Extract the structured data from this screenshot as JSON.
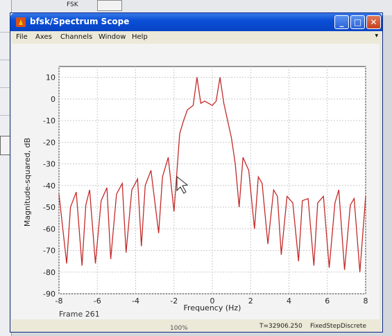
{
  "background": {
    "fsk_label": "FSK",
    "zoom": "100%"
  },
  "window": {
    "title": "bfsk/Spectrum Scope",
    "controls": {
      "minimize": "_",
      "maximize": "□",
      "close": "✕"
    }
  },
  "menu": [
    "File",
    "Axes",
    "Channels",
    "Window",
    "Help"
  ],
  "icons": {
    "app": "matlab-icon",
    "menu_arrow": "menu-arrow-icon"
  },
  "frame_label": "Frame 261",
  "status": {
    "time": "T=32906.250",
    "solver": "FixedStepDiscrete"
  },
  "colors": {
    "trace": "#c42a2a",
    "titlebar": "#0a4fd6",
    "grid": "#c9c9c9"
  },
  "chart_data": {
    "type": "line",
    "title": "",
    "xlabel": "Frequency (Hz)",
    "ylabel": "Magnitude-squared, dB",
    "xlim": [
      -8,
      8
    ],
    "ylim": [
      -90,
      15
    ],
    "xticks": [
      -8,
      -6,
      -4,
      -2,
      0,
      2,
      4,
      6,
      8
    ],
    "yticks": [
      10,
      0,
      -10,
      -20,
      -30,
      -40,
      -50,
      -60,
      -70,
      -80,
      -90
    ],
    "grid": true,
    "series": [
      {
        "color": "#c42a2a",
        "x": [
          -8.0,
          -7.6,
          -7.4,
          -7.1,
          -6.8,
          -6.6,
          -6.4,
          -6.1,
          -5.8,
          -5.5,
          -5.3,
          -5.0,
          -4.7,
          -4.5,
          -4.2,
          -3.9,
          -3.7,
          -3.5,
          -3.2,
          -2.8,
          -2.6,
          -2.3,
          -2.0,
          -1.7,
          -1.5,
          -1.3,
          -1.0,
          -0.8,
          -0.6,
          -0.4,
          -0.2,
          0.0,
          0.2,
          0.4,
          0.6,
          0.8,
          1.0,
          1.2,
          1.4,
          1.6,
          1.9,
          2.2,
          2.4,
          2.6,
          2.9,
          3.2,
          3.4,
          3.6,
          3.9,
          4.2,
          4.5,
          4.7,
          5.0,
          5.3,
          5.5,
          5.8,
          6.1,
          6.4,
          6.6,
          6.9,
          7.2,
          7.4,
          7.7,
          8.0
        ],
        "y": [
          -44,
          -76,
          -50,
          -43,
          -77,
          -49,
          -42,
          -76,
          -47,
          -41,
          -74,
          -44,
          -39,
          -71,
          -42,
          -37,
          -68,
          -40,
          -33,
          -62,
          -36,
          -27,
          -52,
          -16,
          -10,
          -5,
          -3,
          10,
          -2,
          -1,
          -2,
          -3,
          -1,
          10,
          -2,
          -10,
          -18,
          -30,
          -50,
          -27,
          -33,
          -60,
          -36,
          -39,
          -67,
          -42,
          -45,
          -72,
          -45,
          -48,
          -75,
          -47,
          -46,
          -77,
          -48,
          -45,
          -78,
          -48,
          -42,
          -79,
          -49,
          -46,
          -80,
          -45
        ]
      }
    ]
  }
}
